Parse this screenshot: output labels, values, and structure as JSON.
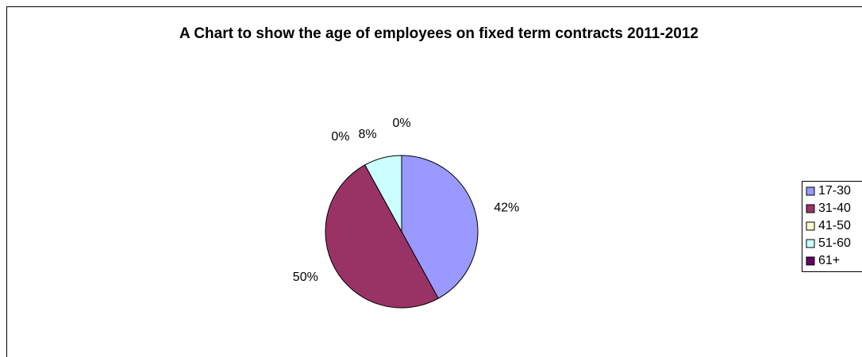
{
  "chart_data": {
    "type": "pie",
    "title": "A Chart to show the age of employees on fixed term contracts 2011-2012",
    "categories": [
      "17-30",
      "31-40",
      "41-50",
      "51-60",
      "61+"
    ],
    "values": [
      42,
      50,
      0,
      8,
      0
    ],
    "value_labels": [
      "42%",
      "50%",
      "0%",
      "8%",
      "0%"
    ],
    "colors": [
      "#9999ff",
      "#993366",
      "#ffffcc",
      "#ccffff",
      "#660066"
    ],
    "legend": "right"
  }
}
